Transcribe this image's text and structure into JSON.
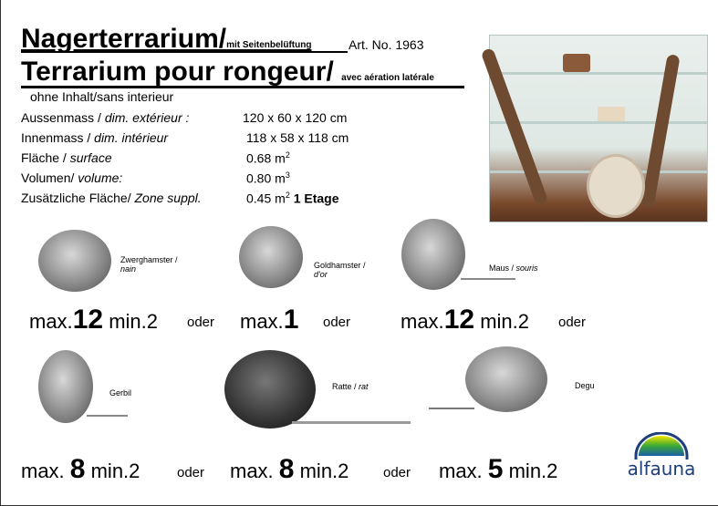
{
  "title_de": "Nagerterrarium/",
  "title_de_suffix": "mit Seitenbelüftung",
  "article": "Art. No. 1963",
  "title_fr": "Terrarium pour rongeur/",
  "title_fr_suffix": "avec aération latérale",
  "subtitle": "ohne Inhalt/sans interieur",
  "specs": [
    {
      "de": "Aussenmass / ",
      "fr": "dim. extérieur :",
      "value": "120 x 60 x 120 cm",
      "sup": "",
      "extra": ""
    },
    {
      "de": "Innenmass / ",
      "fr": "dim. intérieur",
      "value": "118 x 58 x 118 cm",
      "sup": "",
      "extra": ""
    },
    {
      "de": "Fläche / ",
      "fr": "surface",
      "value": "0.68 m",
      "sup": "2",
      "extra": ""
    },
    {
      "de": "Volumen/ ",
      "fr": "volume:",
      "value": "0.80 m",
      "sup": "3",
      "extra": ""
    },
    {
      "de": "Zusätzliche Fläche/ ",
      "fr": "Zone suppl.",
      "value": "0.45 m",
      "sup": "2",
      "extra": "1 Etage"
    }
  ],
  "animals": [
    {
      "de": "Zwerghamster /",
      "fr": "nain",
      "max_prefix": "max.",
      "max": "12",
      "min": "min.2",
      "oder": "oder"
    },
    {
      "de": "Goldhamster /",
      "fr": "d'or",
      "max_prefix": "max.",
      "max": "1",
      "min": "",
      "oder": "oder"
    },
    {
      "de": "Maus / ",
      "fr": "souris",
      "max_prefix": "max.",
      "max": "12",
      "min": "min.2",
      "oder": "oder"
    },
    {
      "de": "Gerbil",
      "fr": "",
      "max_prefix": "max. ",
      "max": "8",
      "min": "min.2",
      "oder": "oder"
    },
    {
      "de": "Ratte / ",
      "fr": "rat",
      "max_prefix": "max. ",
      "max": "8",
      "min": "min.2",
      "oder": "oder"
    },
    {
      "de": "Degu",
      "fr": "",
      "max_prefix": "max. ",
      "max": "5",
      "min": "min.2",
      "oder": ""
    }
  ],
  "logo": {
    "text": "alfauna",
    "colors": [
      "#f2e600",
      "#3aa935",
      "#1a5ea8",
      "#1e3f7a"
    ]
  }
}
